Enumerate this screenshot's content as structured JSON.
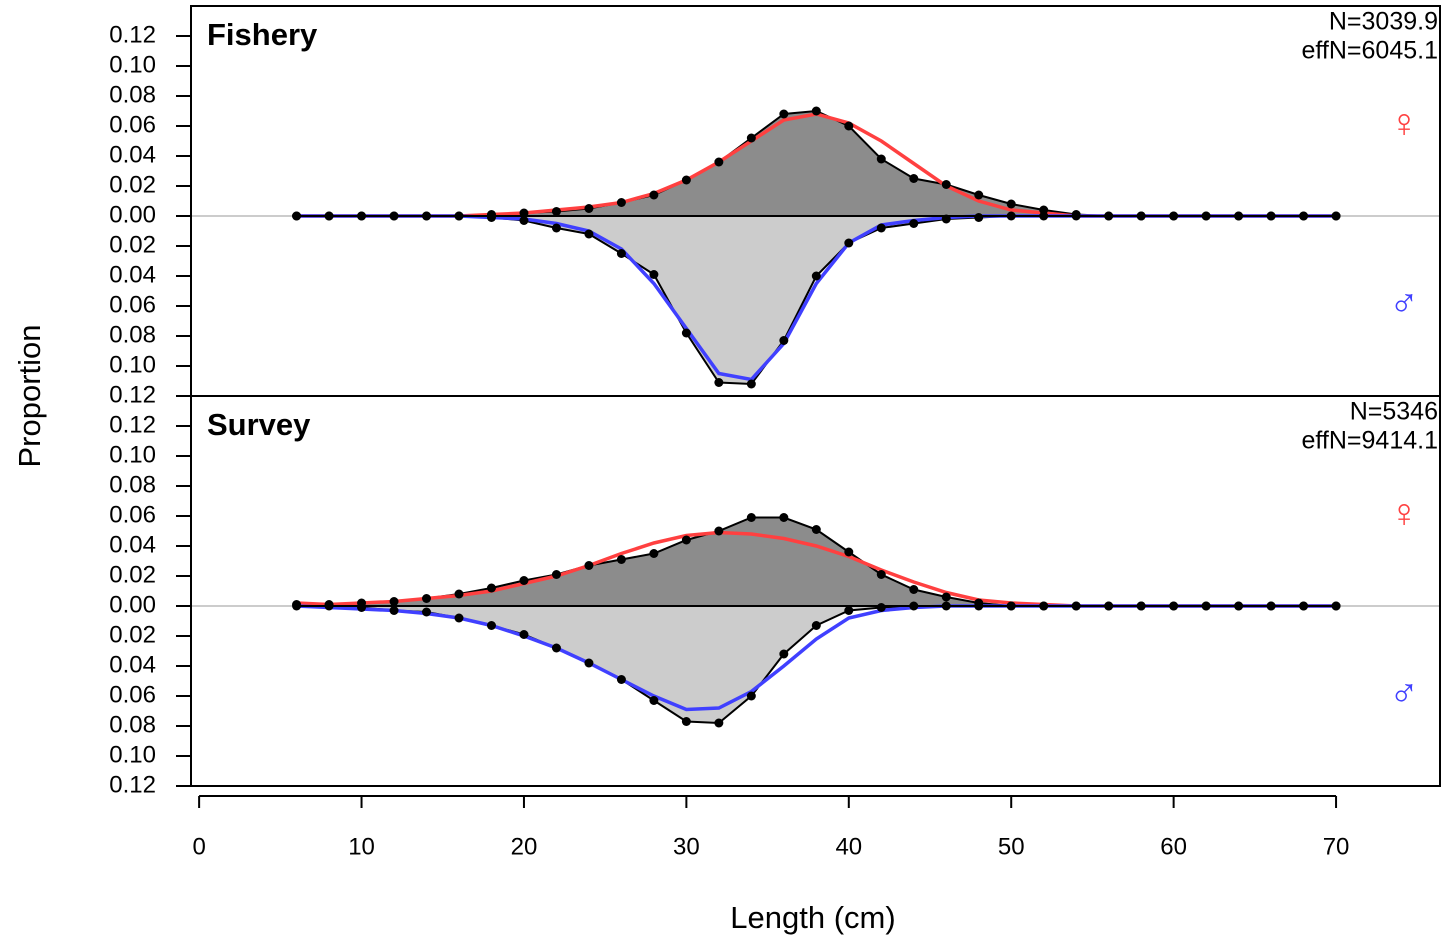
{
  "chart_data": [
    {
      "type": "area",
      "title": "Fishery",
      "annotations": [
        "N=3039.9",
        "effN=6045.1"
      ],
      "ylabel": "Proportion",
      "x": [
        6,
        8,
        10,
        12,
        14,
        16,
        18,
        20,
        22,
        24,
        26,
        28,
        30,
        32,
        34,
        36,
        38,
        40,
        42,
        44,
        46,
        48,
        50,
        52,
        54,
        56,
        58,
        60,
        62,
        64,
        66,
        68,
        70
      ],
      "xlim": [
        -0.5,
        76.4
      ],
      "ylim": [
        -0.12,
        0.14
      ],
      "yticks": [
        {
          "value": -0.12,
          "label": "0.12"
        },
        {
          "value": -0.1,
          "label": "0.10"
        },
        {
          "value": -0.08,
          "label": "0.08"
        },
        {
          "value": -0.06,
          "label": "0.06"
        },
        {
          "value": -0.04,
          "label": "0.04"
        },
        {
          "value": -0.02,
          "label": "0.02"
        },
        {
          "value": 0,
          "label": "0.00"
        },
        {
          "value": 0.02,
          "label": "0.02"
        },
        {
          "value": 0.04,
          "label": "0.04"
        },
        {
          "value": 0.06,
          "label": "0.06"
        },
        {
          "value": 0.08,
          "label": "0.08"
        },
        {
          "value": 0.1,
          "label": "0.10"
        },
        {
          "value": 0.12,
          "label": "0.12"
        }
      ],
      "series": [
        {
          "name": "♀",
          "color": "#ff4040",
          "fill": "#8c8c8c",
          "direction": "up",
          "values": [
            0,
            0,
            0,
            0,
            0,
            0,
            0.001,
            0.002,
            0.003,
            0.005,
            0.009,
            0.014,
            0.024,
            0.036,
            0.052,
            0.068,
            0.07,
            0.06,
            0.038,
            0.025,
            0.021,
            0.014,
            0.008,
            0.004,
            0.001,
            0,
            0,
            0,
            0,
            0,
            0,
            0,
            0
          ],
          "fitted": [
            0,
            0,
            0,
            0,
            0,
            0,
            0.001,
            0.002,
            0.004,
            0.006,
            0.009,
            0.015,
            0.024,
            0.036,
            0.05,
            0.064,
            0.068,
            0.062,
            0.05,
            0.035,
            0.02,
            0.01,
            0.004,
            0.002,
            0,
            0,
            0,
            0,
            0,
            0,
            0,
            0,
            0
          ]
        },
        {
          "name": "♂",
          "color": "#4040ff",
          "fill": "#cccccc",
          "direction": "down",
          "values": [
            0,
            0,
            0,
            0,
            0,
            0,
            0.001,
            0.003,
            0.008,
            0.012,
            0.025,
            0.039,
            0.078,
            0.111,
            0.112,
            0.083,
            0.04,
            0.018,
            0.008,
            0.005,
            0.002,
            0.001,
            0,
            0,
            0,
            0,
            0,
            0,
            0,
            0,
            0,
            0,
            0
          ],
          "fitted": [
            0,
            0,
            0,
            0,
            0,
            0,
            0.001,
            0.002,
            0.005,
            0.01,
            0.022,
            0.045,
            0.075,
            0.105,
            0.109,
            0.085,
            0.045,
            0.018,
            0.006,
            0.003,
            0.001,
            0,
            0,
            0,
            0,
            0,
            0,
            0,
            0,
            0,
            0,
            0,
            0
          ]
        }
      ]
    },
    {
      "type": "area",
      "title": "Survey",
      "annotations": [
        "N=5346",
        "effN=9414.1"
      ],
      "xlabel": "Length (cm)",
      "x": [
        6,
        8,
        10,
        12,
        14,
        16,
        18,
        20,
        22,
        24,
        26,
        28,
        30,
        32,
        34,
        36,
        38,
        40,
        42,
        44,
        46,
        48,
        50,
        52,
        54,
        56,
        58,
        60,
        62,
        64,
        66,
        68,
        70
      ],
      "xlim": [
        -0.5,
        76.4
      ],
      "ylim": [
        -0.12,
        0.14
      ],
      "xticks": [
        0,
        10,
        20,
        30,
        40,
        50,
        60,
        70
      ],
      "yticks": [
        {
          "value": -0.12,
          "label": "0.12"
        },
        {
          "value": -0.1,
          "label": "0.10"
        },
        {
          "value": -0.08,
          "label": "0.08"
        },
        {
          "value": -0.06,
          "label": "0.06"
        },
        {
          "value": -0.04,
          "label": "0.04"
        },
        {
          "value": -0.02,
          "label": "0.02"
        },
        {
          "value": 0,
          "label": "0.00"
        },
        {
          "value": 0.02,
          "label": "0.02"
        },
        {
          "value": 0.04,
          "label": "0.04"
        },
        {
          "value": 0.06,
          "label": "0.06"
        },
        {
          "value": 0.08,
          "label": "0.08"
        },
        {
          "value": 0.1,
          "label": "0.10"
        },
        {
          "value": 0.12,
          "label": "0.12"
        }
      ],
      "series": [
        {
          "name": "♀",
          "color": "#ff4040",
          "fill": "#8c8c8c",
          "direction": "up",
          "values": [
            0.001,
            0.001,
            0.002,
            0.003,
            0.005,
            0.008,
            0.012,
            0.017,
            0.021,
            0.027,
            0.031,
            0.035,
            0.044,
            0.05,
            0.059,
            0.059,
            0.051,
            0.036,
            0.021,
            0.011,
            0.006,
            0.002,
            0,
            0,
            0,
            0,
            0,
            0,
            0,
            0,
            0,
            0,
            0
          ],
          "fitted": [
            0.002,
            0.001,
            0.002,
            0.003,
            0.005,
            0.007,
            0.01,
            0.015,
            0.02,
            0.027,
            0.035,
            0.042,
            0.047,
            0.049,
            0.048,
            0.045,
            0.04,
            0.033,
            0.024,
            0.016,
            0.009,
            0.004,
            0.002,
            0.001,
            0,
            0,
            0,
            0,
            0,
            0,
            0,
            0,
            0
          ]
        },
        {
          "name": "♂",
          "color": "#4040ff",
          "fill": "#cccccc",
          "direction": "down",
          "values": [
            0,
            0,
            0.001,
            0.003,
            0.004,
            0.008,
            0.013,
            0.019,
            0.028,
            0.038,
            0.049,
            0.063,
            0.077,
            0.078,
            0.06,
            0.032,
            0.013,
            0.003,
            0.001,
            0,
            0,
            0,
            0,
            0,
            0,
            0,
            0,
            0,
            0,
            0,
            0,
            0,
            0
          ],
          "fitted": [
            0,
            0.001,
            0.002,
            0.003,
            0.005,
            0.008,
            0.013,
            0.02,
            0.028,
            0.038,
            0.049,
            0.06,
            0.069,
            0.068,
            0.057,
            0.04,
            0.022,
            0.008,
            0.003,
            0.001,
            0,
            0,
            0,
            0,
            0,
            0,
            0,
            0,
            0,
            0,
            0,
            0,
            0
          ]
        }
      ]
    }
  ]
}
